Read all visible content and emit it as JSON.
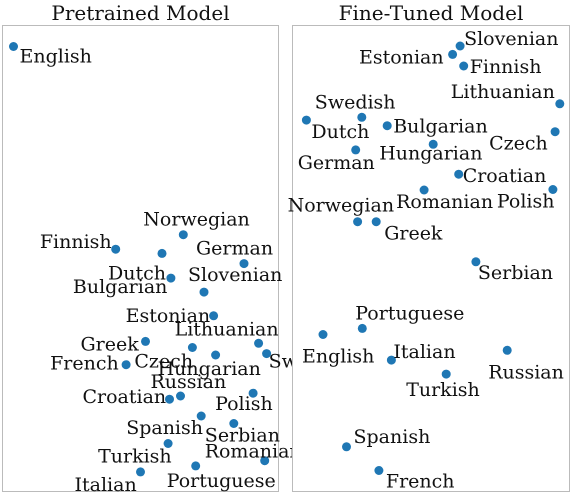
{
  "chart_data": [
    {
      "type": "scatter",
      "title": "Pretrained Model",
      "xlabel": "",
      "ylabel": "",
      "xlim": [
        0,
        1
      ],
      "ylim": [
        0,
        1
      ],
      "grid": false,
      "points": [
        {
          "label": "English",
          "x": 0.04,
          "y": 0.955
        },
        {
          "label": "Finnish",
          "x": 0.41,
          "y": 0.52
        },
        {
          "label": "Norwegian",
          "x": 0.655,
          "y": 0.551
        },
        {
          "label": "German",
          "x": 0.875,
          "y": 0.489
        },
        {
          "label": "Dutch",
          "x": 0.578,
          "y": 0.511
        },
        {
          "label": "Bulgarian",
          "x": 0.61,
          "y": 0.458
        },
        {
          "label": "Slovenian",
          "x": 0.73,
          "y": 0.428
        },
        {
          "label": "Estonian",
          "x": 0.765,
          "y": 0.377
        },
        {
          "label": "Greek",
          "x": 0.518,
          "y": 0.322
        },
        {
          "label": "Lithuanian",
          "x": 0.928,
          "y": 0.318
        },
        {
          "label": "French",
          "x": 0.448,
          "y": 0.272
        },
        {
          "label": "Czech",
          "x": 0.688,
          "y": 0.309
        },
        {
          "label": "Swedish",
          "x": 0.957,
          "y": 0.296
        },
        {
          "label": "Hungarian",
          "x": 0.772,
          "y": 0.293
        },
        {
          "label": "Croatian",
          "x": 0.605,
          "y": 0.198
        },
        {
          "label": "Russian",
          "x": 0.645,
          "y": 0.205
        },
        {
          "label": "Polish",
          "x": 0.908,
          "y": 0.211
        },
        {
          "label": "Spanish",
          "x": 0.72,
          "y": 0.162
        },
        {
          "label": "Serbian",
          "x": 0.838,
          "y": 0.146
        },
        {
          "label": "Turkish",
          "x": 0.6,
          "y": 0.103
        },
        {
          "label": "Romanian",
          "x": 0.95,
          "y": 0.066
        },
        {
          "label": "Italian",
          "x": 0.5,
          "y": 0.042
        },
        {
          "label": "Portuguese",
          "x": 0.7,
          "y": 0.055
        }
      ]
    },
    {
      "type": "scatter",
      "title": "Fine-Tuned Model",
      "xlabel": "",
      "ylabel": "",
      "xlim": [
        0,
        1
      ],
      "ylim": [
        0,
        1
      ],
      "grid": false,
      "points": [
        {
          "label": "Slovenian",
          "x": 0.605,
          "y": 0.956
        },
        {
          "label": "Estonian",
          "x": 0.578,
          "y": 0.938
        },
        {
          "label": "Finnish",
          "x": 0.618,
          "y": 0.913
        },
        {
          "label": "Swedish",
          "x": 0.25,
          "y": 0.803
        },
        {
          "label": "Lithuanian",
          "x": 0.965,
          "y": 0.832
        },
        {
          "label": "Dutch",
          "x": 0.05,
          "y": 0.797
        },
        {
          "label": "Bulgarian",
          "x": 0.342,
          "y": 0.785
        },
        {
          "label": "Czech",
          "x": 0.948,
          "y": 0.772
        },
        {
          "label": "Hungarian",
          "x": 0.508,
          "y": 0.745
        },
        {
          "label": "German",
          "x": 0.228,
          "y": 0.733
        },
        {
          "label": "Croatian",
          "x": 0.6,
          "y": 0.681
        },
        {
          "label": "Romanian",
          "x": 0.475,
          "y": 0.647
        },
        {
          "label": "Polish",
          "x": 0.94,
          "y": 0.648
        },
        {
          "label": "Norwegian",
          "x": 0.235,
          "y": 0.579
        },
        {
          "label": "Greek",
          "x": 0.302,
          "y": 0.579
        },
        {
          "label": "Serbian",
          "x": 0.662,
          "y": 0.493
        },
        {
          "label": "Portuguese",
          "x": 0.252,
          "y": 0.35
        },
        {
          "label": "English",
          "x": 0.11,
          "y": 0.337
        },
        {
          "label": "Italian",
          "x": 0.357,
          "y": 0.282
        },
        {
          "label": "Russian",
          "x": 0.775,
          "y": 0.303
        },
        {
          "label": "Turkish",
          "x": 0.555,
          "y": 0.252
        },
        {
          "label": "Spanish",
          "x": 0.195,
          "y": 0.096
        },
        {
          "label": "French",
          "x": 0.312,
          "y": 0.045
        }
      ]
    }
  ]
}
